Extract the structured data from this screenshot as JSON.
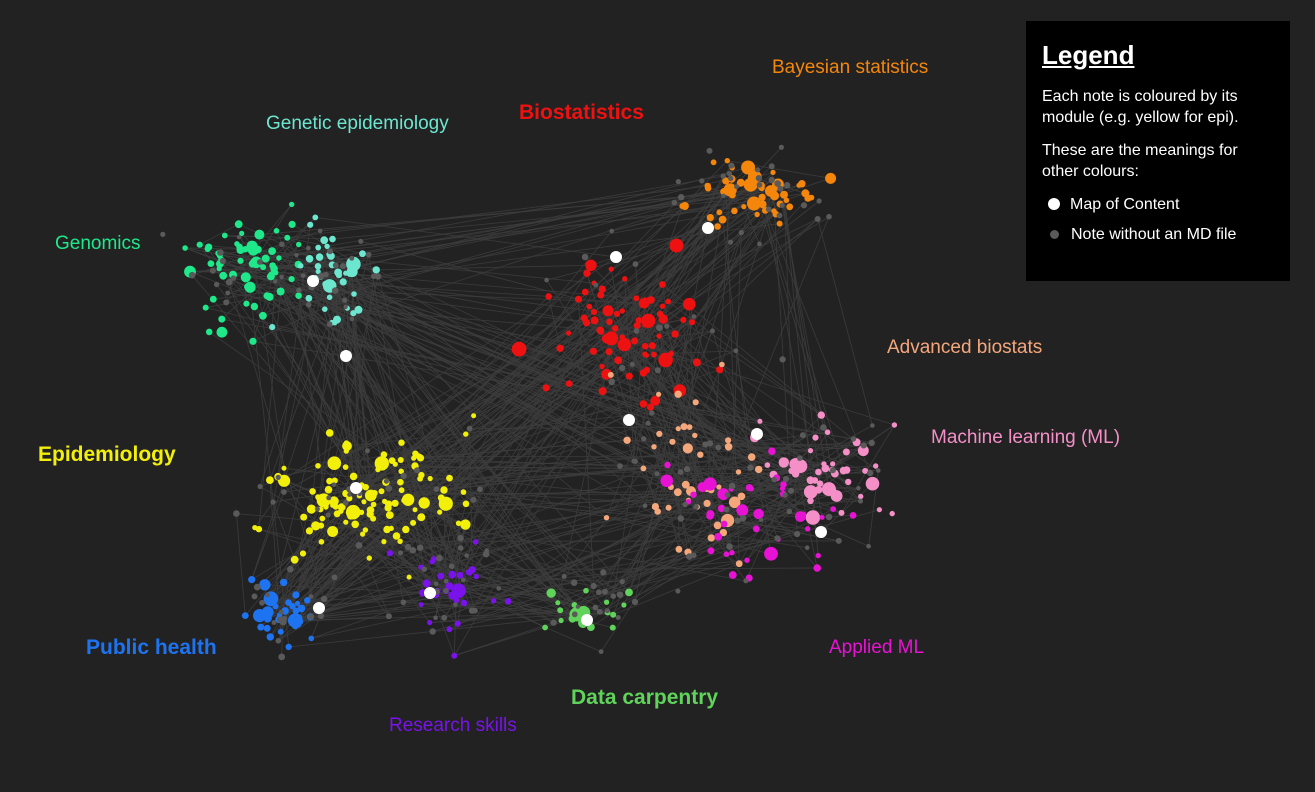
{
  "colors": {
    "background": "#222222",
    "edge": "#3d3d3d",
    "genomics": "#1ee88a",
    "genetic_epidemiology": "#6ce6cf",
    "biostatistics": "#ee1111",
    "bayesian_statistics": "#f5860c",
    "advanced_biostats": "#f5a77c",
    "machine_learning": "#f58fc8",
    "applied_ml": "#e812d4",
    "epidemiology": "#f2ef0a",
    "public_health": "#1e73f0",
    "research_skills": "#7a12ec",
    "data_carpentry": "#5fd35a",
    "map_of_content": "#ffffff",
    "no_md_file": "#5a5a5a"
  },
  "clusters": [
    {
      "key": "genomics",
      "label": "Genomics",
      "major": false
    },
    {
      "key": "genetic_epidemiology",
      "label": "Genetic epidemiology",
      "major": false
    },
    {
      "key": "biostatistics",
      "label": "Biostatistics",
      "major": true
    },
    {
      "key": "bayesian_statistics",
      "label": "Bayesian statistics",
      "major": false
    },
    {
      "key": "advanced_biostats",
      "label": "Advanced biostats",
      "major": false
    },
    {
      "key": "machine_learning",
      "label": "Machine learning (ML)",
      "major": false
    },
    {
      "key": "applied_ml",
      "label": "Applied ML",
      "major": false
    },
    {
      "key": "epidemiology",
      "label": "Epidemiology",
      "major": true
    },
    {
      "key": "public_health",
      "label": "Public health",
      "major": true
    },
    {
      "key": "research_skills",
      "label": "Research skills",
      "major": false
    },
    {
      "key": "data_carpentry",
      "label": "Data carpentry",
      "major": true
    }
  ],
  "legend": {
    "title": "Legend",
    "paragraph1": "Each note is coloured by its module (e.g. yellow for epi).",
    "paragraph2": "These are the meanings for other colours:",
    "items": [
      {
        "key": "map_of_content",
        "label": "Map of Content"
      },
      {
        "key": "no_md_file",
        "label": "Note without an MD file"
      }
    ]
  }
}
